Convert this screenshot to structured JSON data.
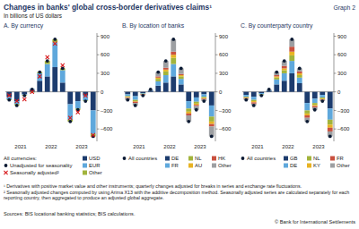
{
  "header": {
    "title": "Changes in banks' global cross-border derivatives claims¹",
    "subtitle": "In billions of US dollars",
    "label": "Graph 2"
  },
  "chart_data": [
    {
      "type": "bar",
      "title": "A. By currency",
      "stacked": true,
      "grid": false,
      "categories": [
        null,
        "2021",
        null,
        null,
        null,
        "2022",
        null,
        null,
        null,
        "2023",
        null,
        null
      ],
      "ylim": [
        -800,
        950
      ],
      "yticks": [
        {
          "value": -600,
          "label": "–600"
        },
        {
          "value": -300,
          "label": "–300"
        },
        0,
        300,
        600,
        900
      ],
      "legend_title": "All currencies:",
      "series": [
        {
          "name": "Unadjusted for seasonality",
          "type": "scatter",
          "marker": "circle",
          "color": "#0b1a33",
          "values": [
            -130,
            -220,
            -60,
            40,
            320,
            500,
            850,
            380,
            -480,
            -290,
            -150,
            -720
          ]
        },
        {
          "name": "Seasonally adjusted²",
          "type": "scatter",
          "marker": "x",
          "color": "#d7191c",
          "values": [
            -60,
            -150,
            -120,
            0,
            250,
            560,
            780,
            430,
            -420,
            -330,
            -60,
            -700
          ]
        },
        {
          "name": "USD",
          "type": "bar",
          "color": "#1d3c6e",
          "values": [
            -80,
            -150,
            -40,
            30,
            180,
            250,
            400,
            150,
            -200,
            -150,
            -60,
            -300
          ]
        },
        {
          "name": "EUR",
          "type": "bar",
          "color": "#5fa8dc",
          "values": [
            -40,
            -50,
            -10,
            20,
            120,
            200,
            400,
            200,
            -250,
            -120,
            -80,
            -380
          ]
        },
        {
          "name": "Other",
          "type": "bar",
          "color": "#a2b43c",
          "values": [
            -10,
            -20,
            -10,
            -10,
            20,
            50,
            50,
            30,
            -30,
            -20,
            -10,
            -40
          ]
        }
      ]
    },
    {
      "type": "bar",
      "title": "B. By location of banks",
      "stacked": true,
      "grid": false,
      "categories": [
        null,
        "2021",
        null,
        null,
        null,
        "2022",
        null,
        null,
        null,
        "2023",
        null,
        null
      ],
      "ylim": [
        -800,
        950
      ],
      "yticks": [
        {
          "value": -600,
          "label": "–600"
        },
        {
          "value": -300,
          "label": "–300"
        },
        0,
        300,
        600,
        900
      ],
      "series": [
        {
          "name": "All countries",
          "type": "scatter",
          "marker": "circle",
          "color": "#0b1a33",
          "values": [
            -130,
            -220,
            -60,
            40,
            320,
            500,
            850,
            380,
            -480,
            -290,
            -150,
            -720
          ]
        },
        {
          "name": "DE",
          "type": "bar",
          "color": "#1d3c6e",
          "values": [
            -40,
            -70,
            -20,
            20,
            100,
            150,
            250,
            120,
            -150,
            -90,
            -40,
            -220
          ]
        },
        {
          "name": "FR",
          "type": "bar",
          "color": "#5fa8dc",
          "values": [
            -30,
            -60,
            -10,
            10,
            70,
            120,
            200,
            90,
            -120,
            -70,
            -40,
            -180
          ]
        },
        {
          "name": "NL",
          "type": "bar",
          "color": "#a2b43c",
          "values": [
            -10,
            -20,
            -10,
            0,
            40,
            60,
            100,
            40,
            -50,
            -30,
            -20,
            -80
          ]
        },
        {
          "name": "AU",
          "type": "bar",
          "color": "#e8b323",
          "values": [
            -10,
            -10,
            0,
            0,
            20,
            30,
            50,
            20,
            -30,
            -20,
            -10,
            -40
          ]
        },
        {
          "name": "HK",
          "type": "bar",
          "color": "#c9513f",
          "values": [
            -10,
            -20,
            -10,
            0,
            20,
            30,
            50,
            20,
            -30,
            -20,
            -10,
            -40
          ]
        },
        {
          "name": "Other",
          "type": "bar",
          "color": "#9d9fa2",
          "values": [
            -30,
            -40,
            -10,
            10,
            70,
            110,
            200,
            90,
            -100,
            -60,
            -30,
            -160
          ]
        }
      ]
    },
    {
      "type": "bar",
      "title": "C. By counterparty country",
      "stacked": true,
      "grid": false,
      "categories": [
        null,
        "2021",
        null,
        null,
        null,
        "2022",
        null,
        null,
        null,
        "2023",
        null,
        null
      ],
      "ylim": [
        -800,
        950
      ],
      "yticks": [
        {
          "value": -600,
          "label": "–600"
        },
        {
          "value": -300,
          "label": "–300"
        },
        0,
        300,
        600,
        900
      ],
      "series": [
        {
          "name": "All countries",
          "type": "scatter",
          "marker": "circle",
          "color": "#0b1a33",
          "values": [
            -130,
            -220,
            -60,
            40,
            320,
            500,
            850,
            380,
            -480,
            -290,
            -150,
            -720
          ]
        },
        {
          "name": "GB",
          "type": "bar",
          "color": "#1d3c6e",
          "values": [
            -50,
            -80,
            -20,
            20,
            120,
            180,
            300,
            140,
            -180,
            -110,
            -50,
            -270
          ]
        },
        {
          "name": "DE",
          "type": "bar",
          "color": "#5fa8dc",
          "values": [
            -30,
            -50,
            -20,
            10,
            80,
            120,
            200,
            90,
            -120,
            -70,
            -40,
            -180
          ]
        },
        {
          "name": "NL",
          "type": "bar",
          "color": "#a2b43c",
          "values": [
            -10,
            -20,
            -10,
            0,
            30,
            50,
            90,
            40,
            -50,
            -30,
            -20,
            -80
          ]
        },
        {
          "name": "KY",
          "type": "bar",
          "color": "#e8b323",
          "values": [
            -10,
            -20,
            0,
            0,
            20,
            30,
            60,
            30,
            -30,
            -20,
            -10,
            -50
          ]
        },
        {
          "name": "FR",
          "type": "bar",
          "color": "#c9513f",
          "values": [
            -10,
            -20,
            0,
            0,
            20,
            40,
            80,
            30,
            -40,
            -20,
            -10,
            -60
          ]
        },
        {
          "name": "Other",
          "type": "bar",
          "color": "#9d9fa2",
          "values": [
            -20,
            -30,
            -10,
            10,
            50,
            80,
            120,
            50,
            -60,
            -40,
            -20,
            -80
          ]
        }
      ]
    }
  ],
  "footnotes": [
    "¹ Derivatives with positive market value and other instruments; quarterly changes adjusted for breaks in series and exchange rate fluctuations.",
    "² Seasonally adjusted changes computed by using Arima X13 with the additive decomposition method. Seasonally adjusted series are calculated separately for each reporting country, then aggregated to produce an adjusted global aggregate."
  ],
  "source": "Sources: BIS locational banking statistics; BIS calculations.",
  "copyright": "© Bank for International Settlements"
}
